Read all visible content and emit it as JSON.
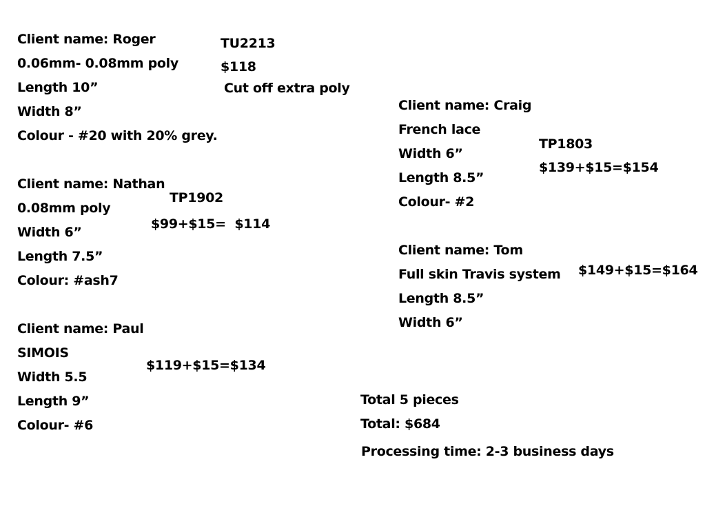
{
  "orders": [
    {
      "lines": [
        "Client name: Roger",
        "0.06mm- 0.08mm poly",
        "Length 10”",
        "Width 8”",
        "Colour - #20 with 20% grey."
      ],
      "code": "TU2213",
      "price": "$118",
      "note": "Cut off extra poly"
    },
    {
      "lines": [
        "Client name: Nathan",
        "0.08mm poly",
        "Width 6”",
        "Length 7.5”",
        "Colour: #ash7"
      ],
      "code": "TP1902",
      "price": "$99+$15=  $114"
    },
    {
      "lines": [
        "Client name: Paul",
        "SIMOIS",
        "Width 5.5",
        "Length 9”",
        "Colour- #6"
      ],
      "price": "$119+$15=$134"
    },
    {
      "lines": [
        "Client name: Craig",
        "French lace",
        "Width 6”",
        "Length 8.5”",
        "Colour- #2"
      ],
      "code": "TP1803",
      "price": "$139+$15=$154"
    },
    {
      "lines": [
        "Client name: Tom",
        "Full skin Travis system",
        "Length 8.5”",
        "Width 6”"
      ],
      "price": "$149+$15=$164"
    }
  ],
  "summary": {
    "pieces": "Total 5 pieces",
    "total": "Total: $684",
    "processing": "Processing time: 2-3 business days"
  }
}
